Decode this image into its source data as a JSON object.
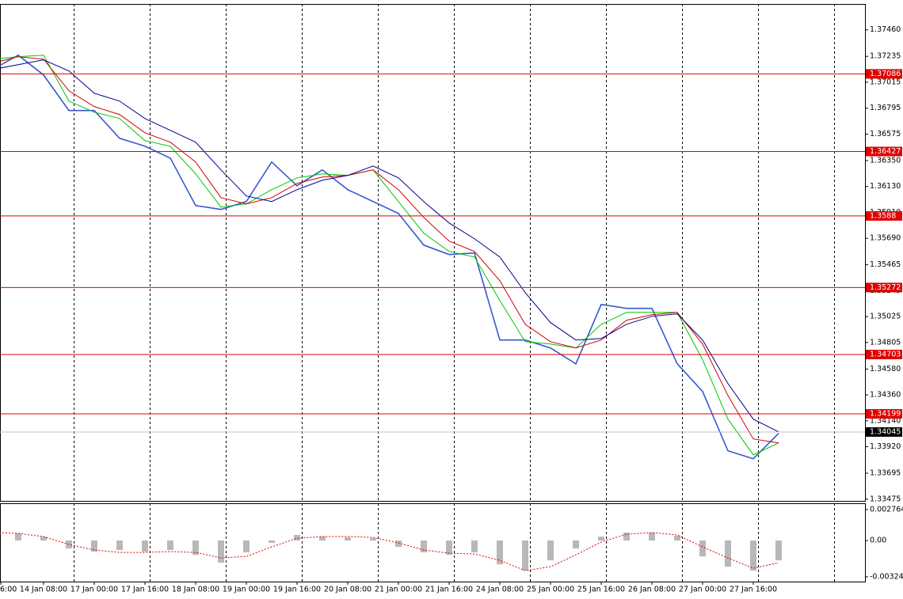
{
  "chart_data": [
    {
      "type": "line",
      "grid": true,
      "categories": [
        "6:00",
        null,
        "14 Jan 08:00",
        null,
        "17 Jan 00:00",
        null,
        "17 Jan 16:00",
        null,
        "18 Jan 08:00",
        null,
        "19 Jan 00:00",
        null,
        "19 Jan 16:00",
        null,
        "20 Jan 08:00",
        null,
        "21 Jan 00:00",
        null,
        "21 Jan 16:00",
        null,
        "24 Jan 08:00",
        null,
        "25 Jan 00:00",
        null,
        "25 Jan 16:00",
        null,
        "26 Jan 08:00",
        null,
        "27 Jan 00:00",
        null,
        "27 Jan 16:00",
        null
      ],
      "series": [
        {
          "color": "#3558d0",
          "values": [
            1.37124,
            1.37245,
            1.37077,
            1.36775,
            1.36775,
            1.36539,
            1.36472,
            1.36371,
            1.35968,
            1.35935,
            1.36002,
            1.36338,
            1.36136,
            1.36271,
            1.36103,
            1.36002,
            1.35901,
            1.35632,
            1.35552,
            1.35565,
            1.34826,
            1.34826,
            1.34759,
            1.34624,
            1.35128,
            1.35095,
            1.35095,
            1.34624,
            1.34389,
            1.33885,
            1.33818,
            1.34033
          ]
        },
        {
          "color": "#00c800",
          "values": [
            1.37211,
            1.37232,
            1.37245,
            1.36855,
            1.36761,
            1.36707,
            1.36519,
            1.36472,
            1.36237,
            1.35955,
            1.35982,
            1.36103,
            1.36203,
            1.36237,
            1.36224,
            1.36271,
            1.36002,
            1.35733,
            1.35578,
            1.35531,
            1.35162,
            1.34812,
            1.34792,
            1.34759,
            1.3496,
            1.35061,
            1.35061,
            1.35061,
            1.34658,
            1.34154,
            1.33851,
            1.33952
          ]
        },
        {
          "color": "#d00000",
          "values": [
            1.37178,
            1.37232,
            1.37211,
            1.36943,
            1.36808,
            1.36741,
            1.36586,
            1.36506,
            1.36338,
            1.36035,
            1.35982,
            1.36035,
            1.36156,
            1.3621,
            1.36224,
            1.36271,
            1.36103,
            1.35867,
            1.35666,
            1.35578,
            1.3533,
            1.3496,
            1.34812,
            1.34759,
            1.34826,
            1.34994,
            1.35041,
            1.35061,
            1.34792,
            1.34355,
            1.33986,
            1.33952
          ]
        },
        {
          "color": "#00008b",
          "values": [
            1.37124,
            1.37164,
            1.37205,
            1.37111,
            1.36922,
            1.36855,
            1.36707,
            1.36607,
            1.36506,
            1.36271,
            1.36049,
            1.36002,
            1.36103,
            1.36183,
            1.36224,
            1.36304,
            1.36203,
            1.36002,
            1.3582,
            1.35686,
            1.35531,
            1.35229,
            1.34974,
            1.34826,
            1.34839,
            1.3496,
            1.35027,
            1.35048,
            1.34826,
            1.34456,
            1.34154,
            1.34046
          ]
        }
      ],
      "ylim": [
        1.3346,
        1.3768
      ],
      "yticks": [
        {
          "value": 1.3746,
          "label": "1.37460"
        },
        1.37235,
        1.37015,
        1.36795,
        1.36575,
        {
          "value": 1.3635,
          "label": "1.36350"
        },
        {
          "value": 1.3613,
          "label": "1.36130"
        },
        {
          "value": 1.3591,
          "label": "1.35910"
        },
        {
          "value": 1.3569,
          "label": "1.35690"
        },
        1.35465,
        1.35245,
        1.35025,
        1.34805,
        {
          "value": 1.3458,
          "label": "1.34580"
        },
        {
          "value": 1.3436,
          "label": "1.34360"
        },
        {
          "value": 1.3414,
          "label": "1.34140"
        },
        {
          "value": 1.3392,
          "label": "1.33920"
        },
        1.33695,
        1.33475
      ],
      "levels": [
        1.37086,
        1.36427,
        1.3588,
        1.35272,
        1.34703,
        1.34199
      ],
      "level_color": "#e00000",
      "last_price": 1.34045
    },
    {
      "type": "bar",
      "color": "#b8b8b8",
      "values": [
        0.00057,
        0.00064,
        0.00035,
        -0.00071,
        -0.00099,
        -0.00085,
        -0.00099,
        -0.00085,
        -0.00128,
        -0.00198,
        -0.00106,
        -0.00021,
        0.0005,
        0.00035,
        0.00028,
        0.00021,
        -0.00057,
        -0.00106,
        -0.00128,
        -0.00106,
        -0.00213,
        -0.00269,
        -0.00177,
        -0.00071,
        0.00035,
        0.00071,
        0.00071,
        0.00043,
        -0.00142,
        -0.00234,
        -0.00269,
        -0.00177
      ],
      "series": [
        {
          "color": "#e00000",
          "line_style": "dotted",
          "values": [
            0.00071,
            0.00064,
            0.00035,
            -0.00035,
            -0.00085,
            -0.00106,
            -0.00106,
            -0.00099,
            -0.00106,
            -0.00156,
            -0.00142,
            -0.00057,
            0.00021,
            0.00035,
            0.00035,
            0.00028,
            -0.00021,
            -0.00085,
            -0.00113,
            -0.0012,
            -0.00177,
            -0.00269,
            -0.00234,
            -0.00128,
            -0.00014,
            0.00057,
            0.00071,
            0.0005,
            -0.00057,
            -0.00156,
            -0.00248,
            -0.00198
          ]
        }
      ],
      "ylim": [
        -0.00367,
        0.00333
      ],
      "yticks": [
        0.002764,
        {
          "value": 0,
          "label": "0.00"
        },
        -0.003246
      ]
    }
  ]
}
